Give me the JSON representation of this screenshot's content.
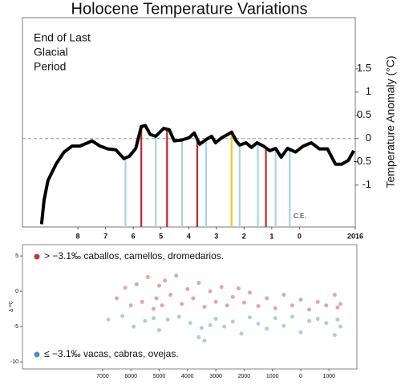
{
  "chart_data": [
    {
      "type": "line",
      "title": "Holocene Temperature Variations",
      "ylabel": "Temperature Anomaly (°C)",
      "annotation": [
        "End of Last",
        "Glacial",
        "Period"
      ],
      "note": "C.E.",
      "color": "#000000",
      "zero_line": true,
      "x": [
        9.31,
        9.22,
        9.08,
        8.79,
        8.5,
        8.21,
        7.93,
        7.64,
        7.49,
        7.2,
        6.92,
        6.63,
        6.34,
        6.14,
        5.91,
        5.71,
        5.56,
        5.39,
        5.19,
        4.9,
        4.7,
        4.52,
        4.24,
        3.98,
        3.8,
        3.6,
        3.37,
        3.17,
        3.03,
        2.8,
        2.59,
        2.45,
        2.28,
        2.16,
        1.93,
        1.73,
        1.53,
        1.3,
        1.07,
        0.86,
        0.66,
        0.43,
        0.14,
        -0.14,
        -0.43,
        -0.72,
        -1.01,
        -1.3,
        -1.53,
        -1.76,
        -1.96
      ],
      "values": [
        -1.84,
        -1.33,
        -0.9,
        -0.55,
        -0.29,
        -0.16,
        -0.16,
        -0.09,
        -0.05,
        -0.16,
        -0.22,
        -0.24,
        -0.43,
        -0.38,
        -0.21,
        0.26,
        0.28,
        0.09,
        0.05,
        0.22,
        0.19,
        -0.05,
        -0.03,
        0.02,
        0.12,
        -0.12,
        -0.02,
        0.05,
        -0.09,
        0.02,
        0.09,
        0.14,
        -0.05,
        -0.14,
        -0.09,
        -0.19,
        -0.09,
        -0.16,
        -0.26,
        -0.21,
        -0.4,
        -0.21,
        -0.29,
        -0.16,
        -0.09,
        -0.22,
        -0.22,
        -0.55,
        -0.55,
        -0.47,
        -0.26
      ],
      "events": [
        {
          "x": 6.28,
          "color": "#a8d4e6"
        },
        {
          "x": 5.71,
          "color": "#c0272d"
        },
        {
          "x": 5.19,
          "color": "#a8d4e6"
        },
        {
          "x": 4.78,
          "color": "#c0272d"
        },
        {
          "x": 4.24,
          "color": "#a8d4e6"
        },
        {
          "x": 3.69,
          "color": "#c0272d"
        },
        {
          "x": 3.37,
          "color": "#a8d4e6"
        },
        {
          "x": 2.45,
          "color": "#f2c618"
        },
        {
          "x": 2.16,
          "color": "#a8d4e6"
        },
        {
          "x": 1.5,
          "color": "#a8d4e6"
        },
        {
          "x": 1.21,
          "color": "#c0272d"
        },
        {
          "x": 0.86,
          "color": "#a8d4e6"
        },
        {
          "x": 0.35,
          "color": "#a8d4e6"
        }
      ],
      "xlim": [
        10,
        -2.016
      ],
      "xticks": [
        8,
        7,
        6,
        5,
        4,
        3,
        2,
        1,
        0,
        {
          "value": -2.016,
          "label": "2016"
        }
      ],
      "ylim": [
        -1.9,
        2.6
      ],
      "yticks": [
        1.5,
        1,
        0.5,
        0,
        -0.5,
        -1
      ]
    },
    {
      "type": "scatter",
      "ylabel": "Δ ¹³C",
      "series": [
        {
          "name": "> −3.1‰  caballos, camellos, dromedarios.",
          "color": "#c4383a",
          "x": [
            -6500,
            -6200,
            -6000,
            -5800,
            -5600,
            -5400,
            -5200,
            -5100,
            -5000,
            -4900,
            -4800,
            -4600,
            -4400,
            -4200,
            -4000,
            -3800,
            -3600,
            -3400,
            -3200,
            -3000,
            -2800,
            -2600,
            -2400,
            -2200,
            -2000,
            -1800,
            -1500,
            -1200,
            -900,
            -600,
            -300,
            0,
            300,
            600,
            900,
            1200,
            1300,
            1400
          ],
          "values": [
            -1,
            0.5,
            -2,
            1,
            -1.5,
            2,
            -2.5,
            -1,
            0.8,
            -2,
            1.5,
            -0.5,
            2.2,
            -1.8,
            0.3,
            -1,
            1.2,
            -2.2,
            0,
            -1.5,
            0.6,
            -2,
            -0.8,
            0.4,
            -1.6,
            -0.2,
            -2.1,
            -1,
            -2.4,
            -0.5,
            -2,
            -1.2,
            -2.6,
            -1.5,
            -2,
            -0.5,
            -2.3,
            -1.8
          ]
        },
        {
          "name": "≤ −3.1‰  vacas, cabras, ovejas.",
          "color": "#4b8dbf",
          "x": [
            -6800,
            -6300,
            -5900,
            -5500,
            -5200,
            -5000,
            -4700,
            -4300,
            -3900,
            -3600,
            -3500,
            -3400,
            -3200,
            -3000,
            -2700,
            -2400,
            -2100,
            -1800,
            -1500,
            -1200,
            -900,
            -600,
            -300,
            0,
            300,
            600,
            900,
            1200,
            1300,
            1400
          ],
          "values": [
            -4,
            -3.5,
            -5,
            -4.2,
            -3.8,
            -5.5,
            -4,
            -3.6,
            -4.5,
            -6.5,
            -5.2,
            -7,
            -4.8,
            -3.9,
            -5,
            -4.3,
            -6,
            -3.7,
            -4.6,
            -5.3,
            -3.8,
            -4.9,
            -3.6,
            -5.8,
            -4.2,
            -3.9,
            -4.5,
            -6.2,
            -4,
            -5
          ]
        }
      ],
      "xlim": [
        -9830,
        1983
      ],
      "xticks": [
        {
          "value": -7000,
          "label": "7000"
        },
        {
          "value": -6000,
          "label": "6000"
        },
        {
          "value": -5000,
          "label": "5000"
        },
        {
          "value": -4000,
          "label": "4000"
        },
        {
          "value": -3000,
          "label": "3000"
        },
        {
          "value": -2000,
          "label": "2000"
        },
        {
          "value": -1000,
          "label": "1000"
        },
        0,
        1000
      ],
      "ylim": [
        -11,
        6.6
      ],
      "yticks": [
        5,
        0,
        -5,
        -10
      ]
    }
  ]
}
